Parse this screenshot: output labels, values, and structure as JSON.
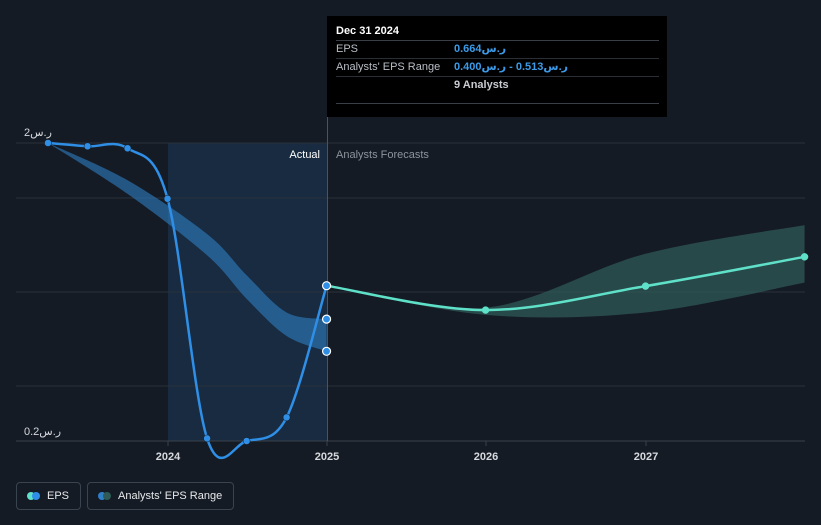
{
  "chart_data": {
    "type": "line",
    "y_axis": {
      "scale": "log",
      "top_label": "ر.س2",
      "bottom_label": "ر.س0.2",
      "range": [
        0.2,
        2.0
      ]
    },
    "x_axis": {
      "ticks": [
        "2024",
        "2025",
        "2026",
        "2027"
      ],
      "range": [
        "2023-04",
        "2027-12"
      ]
    },
    "sections": {
      "actual": "Actual",
      "forecast": "Analysts Forecasts"
    },
    "series": [
      {
        "name": "EPS",
        "kind": "actual",
        "color": "#2f8fe6",
        "points": [
          {
            "x": "2023-03-31",
            "y": 2.0
          },
          {
            "x": "2023-06-30",
            "y": 1.95
          },
          {
            "x": "2023-09-30",
            "y": 1.92
          },
          {
            "x": "2023-12-31",
            "y": 1.3
          },
          {
            "x": "2024-03-31",
            "y": 0.204
          },
          {
            "x": "2024-06-30",
            "y": 0.2
          },
          {
            "x": "2024-09-30",
            "y": 0.24
          },
          {
            "x": "2024-12-31",
            "y": 0.664
          }
        ]
      },
      {
        "name": "EPS forecast",
        "kind": "forecast",
        "color": "#5fe0c8",
        "points": [
          {
            "x": "2024-12-31",
            "y": 0.664
          },
          {
            "x": "2025-12-31",
            "y": 0.55
          },
          {
            "x": "2026-12-31",
            "y": 0.662
          },
          {
            "x": "2027-12-31",
            "y": 0.83
          }
        ]
      }
    ],
    "range_series": [
      {
        "name": "Analysts' EPS Range",
        "kind": "actual",
        "color": "#2f7fc4",
        "upper": [
          {
            "x": "2023-03-31",
            "y": 2.0
          },
          {
            "x": "2023-09-30",
            "y": 1.5
          },
          {
            "x": "2024-03-31",
            "y": 0.99
          },
          {
            "x": "2024-06-30",
            "y": 0.72
          },
          {
            "x": "2024-09-30",
            "y": 0.54
          },
          {
            "x": "2024-12-31",
            "y": 0.513
          }
        ],
        "lower": [
          {
            "x": "2023-03-31",
            "y": 2.0
          },
          {
            "x": "2023-09-30",
            "y": 1.35
          },
          {
            "x": "2024-03-31",
            "y": 0.84
          },
          {
            "x": "2024-06-30",
            "y": 0.6
          },
          {
            "x": "2024-09-30",
            "y": 0.45
          },
          {
            "x": "2024-12-31",
            "y": 0.4
          }
        ]
      },
      {
        "name": "Analysts' EPS Range forecast",
        "kind": "forecast",
        "color": "#2f5a55",
        "upper": [
          {
            "x": "2024-12-31",
            "y": 0.664
          },
          {
            "x": "2025-12-31",
            "y": 0.56
          },
          {
            "x": "2026-12-31",
            "y": 0.85
          },
          {
            "x": "2027-12-31",
            "y": 1.06
          }
        ],
        "lower": [
          {
            "x": "2024-12-31",
            "y": 0.664
          },
          {
            "x": "2025-12-31",
            "y": 0.53
          },
          {
            "x": "2026-12-31",
            "y": 0.54
          },
          {
            "x": "2027-12-31",
            "y": 0.68
          }
        ]
      }
    ],
    "range_endpoints": [
      {
        "x": "2024-12-31",
        "y": 0.513
      },
      {
        "x": "2024-12-31",
        "y": 0.4
      }
    ]
  },
  "tooltip": {
    "date": "Dec 31 2024",
    "eps_label": "EPS",
    "eps_value": "ر.س0.664",
    "range_label": "Analysts' EPS Range",
    "range_value": "ر.س0.513 - ر.س0.400",
    "analysts": "9 Analysts"
  },
  "legend": {
    "eps_label": "EPS",
    "range_label": "Analysts' EPS Range",
    "eps_colors": [
      "#5fe0c8",
      "#2f8fe6"
    ],
    "range_colors": [
      "#2f7fc4",
      "#2f5a55"
    ]
  },
  "colors": {
    "background": "#151b24",
    "actual_shade": "#182b40",
    "grid": "#2a313b"
  }
}
